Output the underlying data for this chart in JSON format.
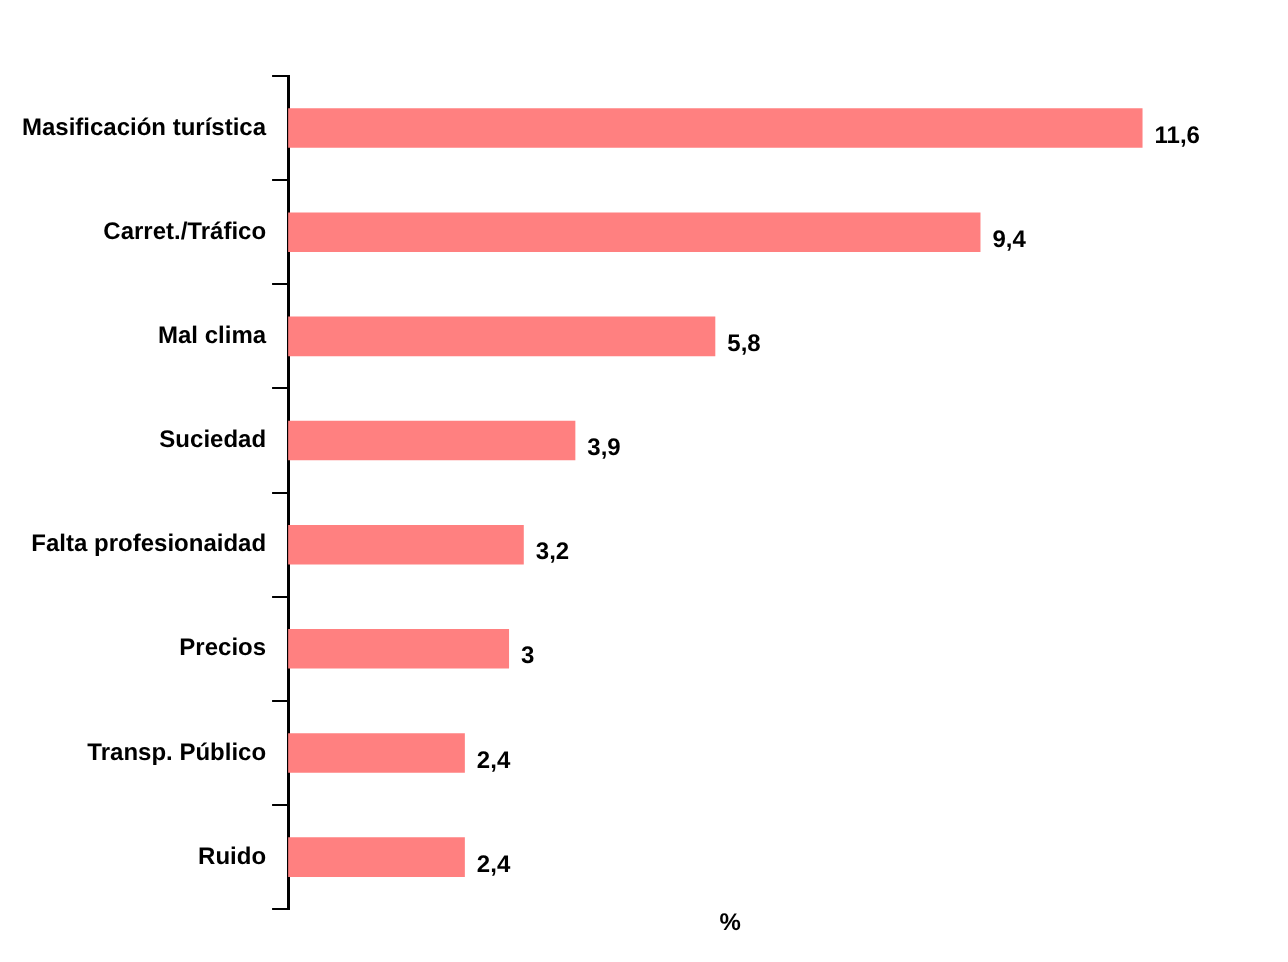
{
  "chart_data": {
    "type": "bar",
    "orientation": "horizontal",
    "xlabel": "%",
    "categories": [
      "Masificación turística",
      "Carret./Tráfico",
      "Mal clima",
      "Suciedad",
      "Falta profesionaidad",
      "Precios",
      "Transp. Público",
      "Ruido"
    ],
    "values": [
      11.6,
      9.4,
      5.8,
      3.9,
      3.2,
      3,
      2.4,
      2.4
    ],
    "value_labels": [
      "11,6",
      "9,4",
      "5,8",
      "3,9",
      "3,2",
      "3",
      "2,4",
      "2,4"
    ],
    "color": "#ff8080",
    "grid": false,
    "legend": false
  }
}
